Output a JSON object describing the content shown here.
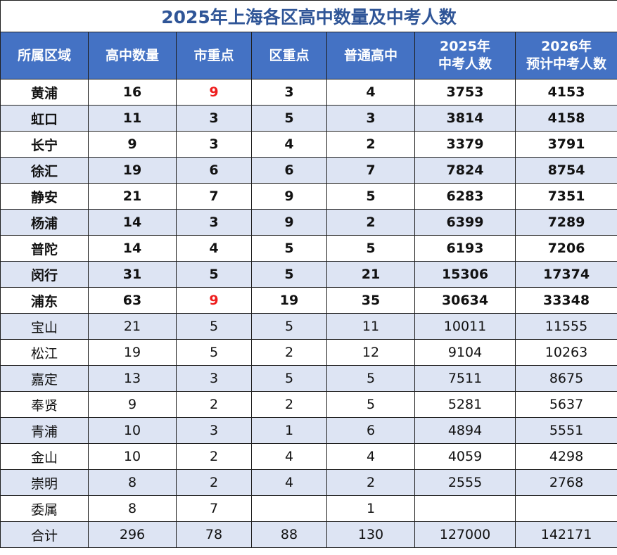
{
  "title": "2025年上海各区高中数量及中考人数",
  "headers": [
    [
      "所属区域"
    ],
    [
      "高中数量"
    ],
    [
      "市重点"
    ],
    [
      "区重点"
    ],
    [
      "普通高中"
    ],
    [
      "2025年",
      "中考人数"
    ],
    [
      "2026年",
      "预计中考人数"
    ]
  ],
  "rows": [
    {
      "area": "黄浦",
      "total": "16",
      "city_key": "9",
      "district_key": "3",
      "regular": "4",
      "exam_2025": "3753",
      "exam_2026": "4153",
      "bold": true,
      "city_key_red": true
    },
    {
      "area": "虹口",
      "total": "11",
      "city_key": "3",
      "district_key": "5",
      "regular": "3",
      "exam_2025": "3814",
      "exam_2026": "4158",
      "bold": true
    },
    {
      "area": "长宁",
      "total": "9",
      "city_key": "3",
      "district_key": "4",
      "regular": "2",
      "exam_2025": "3379",
      "exam_2026": "3791",
      "bold": true
    },
    {
      "area": "徐汇",
      "total": "19",
      "city_key": "6",
      "district_key": "6",
      "regular": "7",
      "exam_2025": "7824",
      "exam_2026": "8754",
      "bold": true
    },
    {
      "area": "静安",
      "total": "21",
      "city_key": "7",
      "district_key": "9",
      "regular": "5",
      "exam_2025": "6283",
      "exam_2026": "7351",
      "bold": true
    },
    {
      "area": "杨浦",
      "total": "14",
      "city_key": "3",
      "district_key": "9",
      "regular": "2",
      "exam_2025": "6399",
      "exam_2026": "7289",
      "bold": true
    },
    {
      "area": "普陀",
      "total": "14",
      "city_key": "4",
      "district_key": "5",
      "regular": "5",
      "exam_2025": "6193",
      "exam_2026": "7206",
      "bold": true
    },
    {
      "area": "闵行",
      "total": "31",
      "city_key": "5",
      "district_key": "5",
      "regular": "21",
      "exam_2025": "15306",
      "exam_2026": "17374",
      "bold": true
    },
    {
      "area": "浦东",
      "total": "63",
      "city_key": "9",
      "district_key": "19",
      "regular": "35",
      "exam_2025": "30634",
      "exam_2026": "33348",
      "bold": true,
      "city_key_red": true
    },
    {
      "area": "宝山",
      "total": "21",
      "city_key": "5",
      "district_key": "5",
      "regular": "11",
      "exam_2025": "10011",
      "exam_2026": "11555"
    },
    {
      "area": "松江",
      "total": "19",
      "city_key": "5",
      "district_key": "2",
      "regular": "12",
      "exam_2025": "9104",
      "exam_2026": "10263"
    },
    {
      "area": "嘉定",
      "total": "13",
      "city_key": "3",
      "district_key": "5",
      "regular": "5",
      "exam_2025": "7511",
      "exam_2026": "8675"
    },
    {
      "area": "奉贤",
      "total": "9",
      "city_key": "2",
      "district_key": "2",
      "regular": "5",
      "exam_2025": "5281",
      "exam_2026": "5637"
    },
    {
      "area": "青浦",
      "total": "10",
      "city_key": "3",
      "district_key": "1",
      "regular": "6",
      "exam_2025": "4894",
      "exam_2026": "5551"
    },
    {
      "area": "金山",
      "total": "10",
      "city_key": "2",
      "district_key": "4",
      "regular": "4",
      "exam_2025": "4059",
      "exam_2026": "4298"
    },
    {
      "area": "崇明",
      "total": "8",
      "city_key": "2",
      "district_key": "4",
      "regular": "2",
      "exam_2025": "2555",
      "exam_2026": "2768"
    },
    {
      "area": "委属",
      "total": "8",
      "city_key": "7",
      "district_key": "",
      "regular": "1",
      "exam_2025": "",
      "exam_2026": ""
    },
    {
      "area": "合计",
      "total": "296",
      "city_key": "78",
      "district_key": "88",
      "regular": "130",
      "exam_2025": "127000",
      "exam_2026": "142171"
    }
  ],
  "colors": {
    "title": "#2f5597",
    "header_bg": "#4472c4",
    "header_text": "#ffffff",
    "shade_row": "#dde4f3",
    "highlight_red": "#ee1c1c"
  }
}
